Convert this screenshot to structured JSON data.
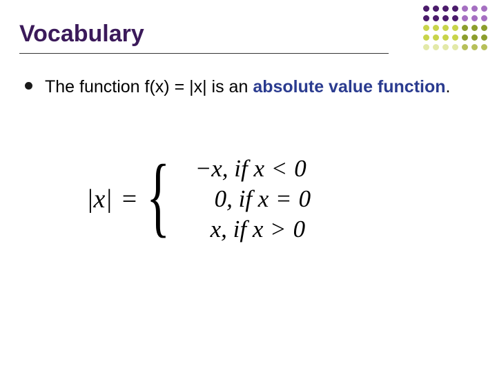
{
  "title": "Vocabulary",
  "title_color": "#3b1a5a",
  "body": {
    "pre": "The function f(x) = |x| is an ",
    "term": "absolute value function",
    "post": "."
  },
  "term_color": "#2a3b8f",
  "formula": {
    "lhs": "|x|",
    "eq": "=",
    "cases": [
      {
        "expr": "−x, if x",
        "rel": "<",
        "rhs": "0"
      },
      {
        "expr": "0, if x",
        "rel": "=",
        "rhs": "0"
      },
      {
        "expr": "x, if x",
        "rel": ">",
        "rhs": "0"
      }
    ],
    "indents": [
      0,
      28,
      22
    ]
  },
  "dots": {
    "rows": 5,
    "cols": 7,
    "colors": [
      "#4b1b6b",
      "#4b1b6b",
      "#4b1b6b",
      "#4b1b6b",
      "#a56fc1",
      "#a56fc1",
      "#a56fc1",
      "#4b1b6b",
      "#4b1b6b",
      "#4b1b6b",
      "#4b1b6b",
      "#a56fc1",
      "#a56fc1",
      "#a56fc1",
      "#c8d44a",
      "#c8d44a",
      "#c8d44a",
      "#c8d44a",
      "#8c9e2e",
      "#8c9e2e",
      "#8c9e2e",
      "#c8d44a",
      "#c8d44a",
      "#c8d44a",
      "#c8d44a",
      "#8c9e2e",
      "#8c9e2e",
      "#8c9e2e",
      "#e3e9a8",
      "#e3e9a8",
      "#e3e9a8",
      "#e3e9a8",
      "#b7c05a",
      "#b7c05a",
      "#b7c05a"
    ]
  }
}
